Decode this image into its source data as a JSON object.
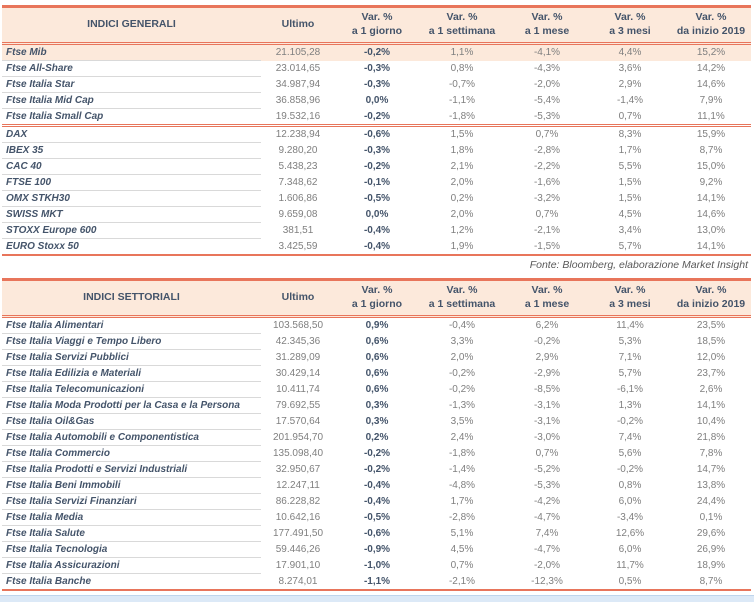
{
  "labels": {
    "ultimo": "Ultimo",
    "var": "Var. %",
    "periods": [
      "a 1 giorno",
      "a 1 settimana",
      "a 1 mese",
      "a 3 mesi",
      "da inizio 2019"
    ],
    "source_note": "Fonte: Bloomberg, elaborazione Market Insight"
  },
  "colors": {
    "accent_line": "#E8755B",
    "header_bg": "#FCE9DB",
    "highlight_row_bg": "#FCE9DB",
    "dark_text": "#44546A",
    "value_text": "#7F7F7F",
    "row_divider": "#D9D9D9",
    "source_text": "#595959",
    "footer_band": "#DCE9F7"
  },
  "tables": [
    {
      "title": "INDICI GENERALI",
      "rows": [
        {
          "name": "Ftse Mib",
          "ultimo": "21.105,28",
          "d1": "-0,2%",
          "w1": "1,1%",
          "m1": "-4,1%",
          "m3": "4,4%",
          "ytd": "15,2%",
          "highlight": true
        },
        {
          "name": "Ftse All-Share",
          "ultimo": "23.014,65",
          "d1": "-0,3%",
          "w1": "0,8%",
          "m1": "-4,3%",
          "m3": "3,6%",
          "ytd": "14,2%"
        },
        {
          "name": "Ftse Italia Star",
          "ultimo": "34.987,94",
          "d1": "-0,3%",
          "w1": "-0,7%",
          "m1": "-2,0%",
          "m3": "2,9%",
          "ytd": "14,6%"
        },
        {
          "name": "Ftse Italia Mid Cap",
          "ultimo": "36.858,96",
          "d1": "0,0%",
          "w1": "-1,1%",
          "m1": "-5,4%",
          "m3": "-1,4%",
          "ytd": "7,9%"
        },
        {
          "name": "Ftse Italia Small Cap",
          "ultimo": "19.532,16",
          "d1": "-0,2%",
          "w1": "-1,8%",
          "m1": "-5,3%",
          "m3": "0,7%",
          "ytd": "11,1%",
          "group_end": true
        },
        {
          "name": "DAX",
          "ultimo": "12.238,94",
          "d1": "-0,6%",
          "w1": "1,5%",
          "m1": "0,7%",
          "m3": "8,3%",
          "ytd": "15,9%"
        },
        {
          "name": "IBEX 35",
          "ultimo": "9.280,20",
          "d1": "-0,3%",
          "w1": "1,8%",
          "m1": "-2,8%",
          "m3": "1,7%",
          "ytd": "8,7%"
        },
        {
          "name": "CAC 40",
          "ultimo": "5.438,23",
          "d1": "-0,2%",
          "w1": "2,1%",
          "m1": "-2,2%",
          "m3": "5,5%",
          "ytd": "15,0%"
        },
        {
          "name": "FTSE 100",
          "ultimo": "7.348,62",
          "d1": "-0,1%",
          "w1": "2,0%",
          "m1": "-1,6%",
          "m3": "1,5%",
          "ytd": "9,2%"
        },
        {
          "name": "OMX STKH30",
          "ultimo": "1.606,86",
          "d1": "-0,5%",
          "w1": "0,2%",
          "m1": "-3,2%",
          "m3": "1,5%",
          "ytd": "14,1%"
        },
        {
          "name": "SWISS MKT",
          "ultimo": "9.659,08",
          "d1": "0,0%",
          "w1": "2,0%",
          "m1": "0,7%",
          "m3": "4,5%",
          "ytd": "14,6%"
        },
        {
          "name": "STOXX Europe 600",
          "ultimo": "381,51",
          "d1": "-0,4%",
          "w1": "1,2%",
          "m1": "-2,1%",
          "m3": "3,4%",
          "ytd": "13,0%"
        },
        {
          "name": "EURO Stoxx 50",
          "ultimo": "3.425,59",
          "d1": "-0,4%",
          "w1": "1,9%",
          "m1": "-1,5%",
          "m3": "5,7%",
          "ytd": "14,1%"
        }
      ]
    },
    {
      "title": "INDICI SETTORIALI",
      "rows": [
        {
          "name": "Ftse Italia Alimentari",
          "ultimo": "103.568,50",
          "d1": "0,9%",
          "w1": "-0,4%",
          "m1": "6,2%",
          "m3": "11,4%",
          "ytd": "23,5%"
        },
        {
          "name": "Ftse Italia Viaggi e Tempo Libero",
          "ultimo": "42.345,36",
          "d1": "0,6%",
          "w1": "3,3%",
          "m1": "-0,2%",
          "m3": "5,3%",
          "ytd": "18,5%"
        },
        {
          "name": "Ftse Italia Servizi Pubblici",
          "ultimo": "31.289,09",
          "d1": "0,6%",
          "w1": "2,0%",
          "m1": "2,9%",
          "m3": "7,1%",
          "ytd": "12,0%"
        },
        {
          "name": "Ftse Italia Edilizia e Materiali",
          "ultimo": "30.429,14",
          "d1": "0,6%",
          "w1": "-0,2%",
          "m1": "-2,9%",
          "m3": "5,7%",
          "ytd": "23,7%"
        },
        {
          "name": "Ftse Italia Telecomunicazioni",
          "ultimo": "10.411,74",
          "d1": "0,6%",
          "w1": "-0,2%",
          "m1": "-8,5%",
          "m3": "-6,1%",
          "ytd": "2,6%"
        },
        {
          "name": "Ftse Italia Moda Prodotti per la Casa e la Persona",
          "ultimo": "79.692,55",
          "d1": "0,3%",
          "w1": "-1,3%",
          "m1": "-3,1%",
          "m3": "1,3%",
          "ytd": "14,1%"
        },
        {
          "name": "Ftse Italia Oil&Gas",
          "ultimo": "17.570,64",
          "d1": "0,3%",
          "w1": "3,5%",
          "m1": "-3,1%",
          "m3": "-0,2%",
          "ytd": "10,4%"
        },
        {
          "name": "Ftse Italia Automobili e Componentistica",
          "ultimo": "201.954,70",
          "d1": "0,2%",
          "w1": "2,4%",
          "m1": "-3,0%",
          "m3": "7,4%",
          "ytd": "21,8%"
        },
        {
          "name": "Ftse Italia Commercio",
          "ultimo": "135.098,40",
          "d1": "-0,2%",
          "w1": "-1,8%",
          "m1": "0,7%",
          "m3": "5,6%",
          "ytd": "7,8%"
        },
        {
          "name": "Ftse Italia Prodotti e Servizi Industriali",
          "ultimo": "32.950,67",
          "d1": "-0,2%",
          "w1": "-1,4%",
          "m1": "-5,2%",
          "m3": "-0,2%",
          "ytd": "14,7%"
        },
        {
          "name": "Ftse Italia Beni Immobili",
          "ultimo": "12.247,11",
          "d1": "-0,4%",
          "w1": "-4,8%",
          "m1": "-5,3%",
          "m3": "0,8%",
          "ytd": "13,8%"
        },
        {
          "name": "Ftse Italia Servizi Finanziari",
          "ultimo": "86.228,82",
          "d1": "-0,4%",
          "w1": "1,7%",
          "m1": "-4,2%",
          "m3": "6,0%",
          "ytd": "24,4%"
        },
        {
          "name": "Ftse Italia Media",
          "ultimo": "10.642,16",
          "d1": "-0,5%",
          "w1": "-2,8%",
          "m1": "-4,7%",
          "m3": "-3,4%",
          "ytd": "0,1%"
        },
        {
          "name": "Ftse Italia Salute",
          "ultimo": "177.491,50",
          "d1": "-0,6%",
          "w1": "5,1%",
          "m1": "7,4%",
          "m3": "12,6%",
          "ytd": "29,6%"
        },
        {
          "name": "Ftse Italia Tecnologia",
          "ultimo": "59.446,26",
          "d1": "-0,9%",
          "w1": "4,5%",
          "m1": "-4,7%",
          "m3": "6,0%",
          "ytd": "26,9%"
        },
        {
          "name": "Ftse Italia Assicurazioni",
          "ultimo": "17.901,10",
          "d1": "-1,0%",
          "w1": "0,7%",
          "m1": "-2,0%",
          "m3": "11,7%",
          "ytd": "18,9%"
        },
        {
          "name": "Ftse Italia Banche",
          "ultimo": "8.274,01",
          "d1": "-1,1%",
          "w1": "-2,1%",
          "m1": "-12,3%",
          "m3": "0,5%",
          "ytd": "8,7%"
        }
      ]
    }
  ]
}
